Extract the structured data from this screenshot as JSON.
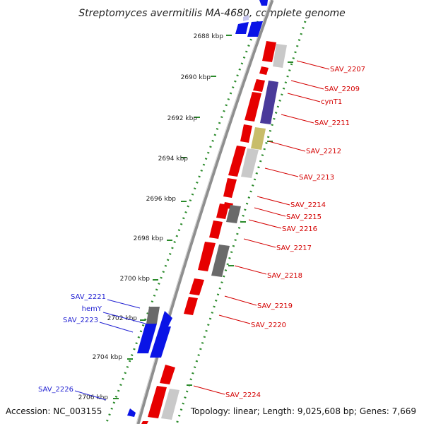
{
  "title": "Streptomyces avermitilis MA-4680, complete genome",
  "footer": {
    "accession": "Accession: NC_003155",
    "summary": "Topology: linear; Length: 9,025,608 bp; Genes: 7,669"
  },
  "colors": {
    "forward": "#e60000",
    "reverse": "#0a14e6",
    "gray": "#7f7f7f",
    "light_gray": "#c9c9c9",
    "purple": "#4a3a9a",
    "khaki": "#c8bd6a",
    "axis": "#8f8f8f",
    "ruler_dots": "#2a8a2a"
  },
  "ticks": [
    {
      "label": "2688 kbp"
    },
    {
      "label": "2690 kbp"
    },
    {
      "label": "2692 kbp"
    },
    {
      "label": "2694 kbp"
    },
    {
      "label": "2696 kbp"
    },
    {
      "label": "2698 kbp"
    },
    {
      "label": "2700 kbp"
    },
    {
      "label": "2702 kbp"
    },
    {
      "label": "2704 kbp"
    },
    {
      "label": "2706 kbp"
    }
  ],
  "gene_labels_right": [
    "SAV_2207",
    "SAV_2209",
    "cynT1",
    "SAV_2211",
    "SAV_2212",
    "SAV_2213",
    "SAV_2214",
    "SAV_2215",
    "SAV_2216",
    "SAV_2217",
    "SAV_2218",
    "SAV_2219",
    "SAV_2220",
    "SAV_2224"
  ],
  "gene_labels_left": [
    "SAV_2221",
    "hemY",
    "SAV_2223",
    "SAV_2226"
  ]
}
